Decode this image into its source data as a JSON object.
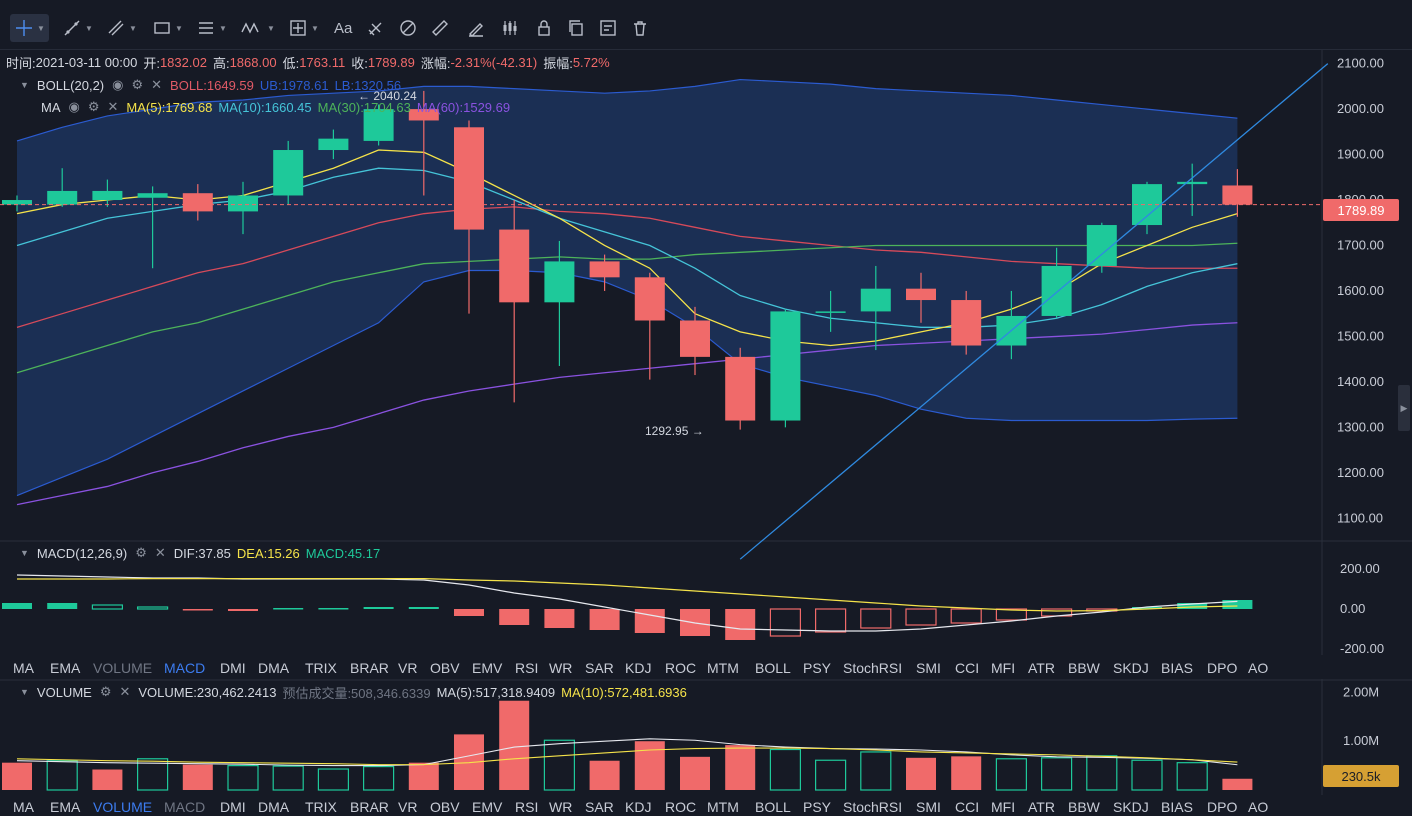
{
  "toolbar": {
    "tools": [
      {
        "name": "crosshair-tool",
        "caret": true,
        "active": true
      },
      {
        "name": "trend-line-tool",
        "caret": true
      },
      {
        "name": "multi-line-tool",
        "caret": true
      },
      {
        "name": "rectangle-tool",
        "caret": true
      },
      {
        "name": "fib-tool",
        "caret": true
      },
      {
        "name": "wave-tool",
        "caret": true
      },
      {
        "name": "measure-tool",
        "caret": true
      },
      {
        "name": "text-tool",
        "label": "Aa"
      },
      {
        "name": "brush-tool"
      },
      {
        "name": "eraser-tool"
      },
      {
        "name": "ruler-tool"
      },
      {
        "name": "pen-tool"
      },
      {
        "name": "candle-tool"
      },
      {
        "name": "lock-tool"
      },
      {
        "name": "copy-tool"
      },
      {
        "name": "settings-list-tool"
      },
      {
        "name": "trash-tool"
      }
    ]
  },
  "ohlc": {
    "time_label": "时间:",
    "time": "2021-03-11 00:00",
    "open_label": "开:",
    "open": "1832.02",
    "high_label": "高:",
    "high": "1868.00",
    "low_label": "低:",
    "low": "1763.11",
    "close_label": "收:",
    "close": "1789.89",
    "change_label": "涨幅:",
    "change": "-2.31%(-42.31)",
    "amp_label": "振幅:",
    "amp": "5.72%"
  },
  "boll_legend": {
    "name": "BOLL(20,2)",
    "boll": "BOLL:1649.59",
    "ub": "UB:1978.61",
    "lb": "LB:1320.56"
  },
  "ma_legend": {
    "name": "MA",
    "ma5": "MA(5):1769.68",
    "ma10": "MA(10):1660.45",
    "ma30": "MA(30):1704.63",
    "ma60": "MA(60):1529.69"
  },
  "macd_legend": {
    "name": "MACD(12,26,9)",
    "dif": "DIF:37.85",
    "dea": "DEA:15.26",
    "macd": "MACD:45.17"
  },
  "volume_legend": {
    "name": "VOLUME",
    "volume": "VOLUME:230,462.2413",
    "est": "预估成交量:508,346.6339",
    "ma5": "MA(5):517,318.9409",
    "ma10": "MA(10):572,481.6936"
  },
  "annotations": {
    "high_mark": "← 2040.24",
    "low_mark": "1292.95 →"
  },
  "price_tag": "1789.89",
  "vol_tag": "230.5k",
  "indicator_tabs": [
    "MA",
    "EMA",
    "VOLUME",
    "MACD",
    "DMI",
    "DMA",
    "TRIX",
    "BRAR",
    "VR",
    "OBV",
    "EMV",
    "RSI",
    "WR",
    "SAR",
    "KDJ",
    "ROC",
    "MTM",
    "BOLL",
    "PSY",
    "StochRSI",
    "SMI",
    "CCI",
    "MFI",
    "ATR",
    "BBW",
    "SKDJ",
    "BIAS",
    "DPO",
    "AO"
  ],
  "tabs_row1_active": "MACD",
  "tabs_row1_dim": [
    "VOLUME"
  ],
  "tabs_row2_active": "VOLUME",
  "tabs_row2_dim": [
    "MACD"
  ],
  "colors": {
    "up": "#1ec99a",
    "down": "#f06a6a",
    "boll_band": "#1e3a6a",
    "boll_line": "#2b5bd0",
    "ma5": "#f5e34a",
    "ma10": "#45c4d8",
    "ma30": "#4db35a",
    "ma60": "#8a52e0",
    "boll_mid": "#d64a5a",
    "trend": "#2f8ae0",
    "bg": "#161a25"
  },
  "chart_data": [
    {
      "type": "candlestick",
      "panel": "price",
      "y_ticks": [
        "2100.00",
        "2000.00",
        "1900.00",
        "1800.00",
        "1700.00",
        "1600.00",
        "1500.00",
        "1400.00",
        "1300.00",
        "1200.00",
        "1100.00"
      ],
      "ylim": [
        1050,
        2130
      ],
      "candles": [
        {
          "o": 1790,
          "h": 1810,
          "l": 1775,
          "c": 1800
        },
        {
          "o": 1790,
          "h": 1870,
          "l": 1785,
          "c": 1820
        },
        {
          "o": 1800,
          "h": 1845,
          "l": 1785,
          "c": 1820
        },
        {
          "o": 1805,
          "h": 1830,
          "l": 1650,
          "c": 1815
        },
        {
          "o": 1815,
          "h": 1835,
          "l": 1755,
          "c": 1775
        },
        {
          "o": 1775,
          "h": 1840,
          "l": 1725,
          "c": 1810
        },
        {
          "o": 1810,
          "h": 1930,
          "l": 1790,
          "c": 1910
        },
        {
          "o": 1910,
          "h": 1955,
          "l": 1890,
          "c": 1935
        },
        {
          "o": 1930,
          "h": 2010,
          "l": 1920,
          "c": 2000
        },
        {
          "o": 2000,
          "h": 2040,
          "l": 1810,
          "c": 1975
        },
        {
          "o": 1960,
          "h": 1975,
          "l": 1550,
          "c": 1735
        },
        {
          "o": 1735,
          "h": 1800,
          "l": 1355,
          "c": 1575
        },
        {
          "o": 1575,
          "h": 1710,
          "l": 1435,
          "c": 1665
        },
        {
          "o": 1665,
          "h": 1680,
          "l": 1600,
          "c": 1630
        },
        {
          "o": 1630,
          "h": 1640,
          "l": 1405,
          "c": 1535
        },
        {
          "o": 1535,
          "h": 1565,
          "l": 1415,
          "c": 1455
        },
        {
          "o": 1455,
          "h": 1475,
          "l": 1295,
          "c": 1315
        },
        {
          "o": 1315,
          "h": 1560,
          "l": 1300,
          "c": 1555
        },
        {
          "o": 1555,
          "h": 1600,
          "l": 1510,
          "c": 1555
        },
        {
          "o": 1555,
          "h": 1655,
          "l": 1470,
          "c": 1605
        },
        {
          "o": 1605,
          "h": 1640,
          "l": 1530,
          "c": 1580
        },
        {
          "o": 1580,
          "h": 1600,
          "l": 1460,
          "c": 1480
        },
        {
          "o": 1480,
          "h": 1600,
          "l": 1450,
          "c": 1545
        },
        {
          "o": 1545,
          "h": 1695,
          "l": 1540,
          "c": 1655
        },
        {
          "o": 1655,
          "h": 1750,
          "l": 1640,
          "c": 1745
        },
        {
          "o": 1745,
          "h": 1840,
          "l": 1725,
          "c": 1835
        },
        {
          "o": 1835,
          "h": 1880,
          "l": 1765,
          "c": 1840
        },
        {
          "o": 1832.02,
          "h": 1868,
          "l": 1763.11,
          "c": 1789.89
        }
      ],
      "ub": [
        1930,
        1960,
        1985,
        2000,
        2015,
        2020,
        2030,
        2035,
        2040,
        2050,
        2050,
        2045,
        2040,
        2035,
        2040,
        2050,
        2065,
        2060,
        2055,
        2045,
        2040,
        2035,
        2030,
        2020,
        2010,
        2000,
        1990,
        1980
      ],
      "lb": [
        1150,
        1190,
        1230,
        1280,
        1330,
        1380,
        1430,
        1480,
        1530,
        1620,
        1645,
        1645,
        1640,
        1620,
        1580,
        1520,
        1440,
        1410,
        1390,
        1370,
        1340,
        1320,
        1315,
        1315,
        1315,
        1315,
        1318,
        1320
      ],
      "mid": [
        1520,
        1550,
        1580,
        1610,
        1640,
        1660,
        1690,
        1720,
        1750,
        1770,
        1780,
        1785,
        1775,
        1770,
        1760,
        1740,
        1720,
        1710,
        1700,
        1690,
        1685,
        1675,
        1665,
        1660,
        1655,
        1650,
        1650,
        1650
      ],
      "ma5": [
        1770,
        1790,
        1800,
        1810,
        1800,
        1810,
        1840,
        1870,
        1910,
        1905,
        1860,
        1810,
        1760,
        1700,
        1650,
        1550,
        1510,
        1490,
        1480,
        1490,
        1510,
        1530,
        1560,
        1600,
        1660,
        1700,
        1740,
        1770
      ],
      "ma10": [
        1700,
        1730,
        1760,
        1775,
        1790,
        1800,
        1820,
        1850,
        1870,
        1865,
        1840,
        1800,
        1760,
        1730,
        1700,
        1650,
        1590,
        1560,
        1540,
        1530,
        1520,
        1520,
        1525,
        1540,
        1570,
        1610,
        1640,
        1660
      ],
      "ma30": [
        1420,
        1450,
        1480,
        1510,
        1530,
        1560,
        1590,
        1620,
        1640,
        1660,
        1665,
        1670,
        1675,
        1670,
        1670,
        1680,
        1685,
        1690,
        1695,
        1700,
        1700,
        1700,
        1700,
        1700,
        1700,
        1700,
        1700,
        1705
      ],
      "ma60": [
        1130,
        1150,
        1170,
        1200,
        1225,
        1255,
        1280,
        1300,
        1330,
        1360,
        1380,
        1395,
        1410,
        1420,
        1430,
        1440,
        1450,
        1460,
        1470,
        1480,
        1485,
        1490,
        1495,
        1500,
        1505,
        1515,
        1525,
        1530
      ],
      "trend_line": {
        "from": {
          "index": 16,
          "value": 1010
        },
        "to": {
          "index": 29,
          "value": 2100
        }
      },
      "current_price": 1789.89
    },
    {
      "type": "bar",
      "panel": "macd",
      "y_ticks": [
        "200.00",
        "0.00",
        "-200.00"
      ],
      "ylim": [
        -220,
        220
      ],
      "hist": [
        30,
        30,
        20,
        10,
        -5,
        -10,
        5,
        5,
        10,
        10,
        -35,
        -80,
        -95,
        -105,
        -120,
        -135,
        -155,
        -135,
        -115,
        -95,
        -80,
        -70,
        -55,
        -35,
        -10,
        10,
        30,
        45
      ],
      "dif": [
        170,
        165,
        160,
        155,
        155,
        150,
        150,
        150,
        150,
        145,
        120,
        80,
        50,
        10,
        -30,
        -70,
        -100,
        -105,
        -110,
        -110,
        -100,
        -80,
        -60,
        -35,
        -15,
        10,
        25,
        38
      ],
      "dea": [
        150,
        150,
        150,
        152,
        152,
        152,
        152,
        152,
        152,
        152,
        145,
        140,
        130,
        120,
        105,
        90,
        75,
        60,
        45,
        30,
        15,
        5,
        -5,
        -10,
        -8,
        0,
        10,
        15
      ]
    },
    {
      "type": "bar",
      "panel": "volume",
      "y_ticks": [
        "2.00M",
        "1.00M"
      ],
      "ylim": [
        0,
        2050000
      ],
      "volumes": [
        {
          "v": 560000,
          "up": false
        },
        {
          "v": 600000,
          "up": true
        },
        {
          "v": 420000,
          "up": false
        },
        {
          "v": 640000,
          "up": true
        },
        {
          "v": 520000,
          "up": false
        },
        {
          "v": 500000,
          "up": true
        },
        {
          "v": 490000,
          "up": true
        },
        {
          "v": 430000,
          "up": true
        },
        {
          "v": 480000,
          "up": true
        },
        {
          "v": 560000,
          "up": false
        },
        {
          "v": 1140000,
          "up": false
        },
        {
          "v": 1830000,
          "up": false
        },
        {
          "v": 1020000,
          "up": true
        },
        {
          "v": 600000,
          "up": false
        },
        {
          "v": 1000000,
          "up": false
        },
        {
          "v": 680000,
          "up": false
        },
        {
          "v": 920000,
          "up": false
        },
        {
          "v": 830000,
          "up": true
        },
        {
          "v": 610000,
          "up": true
        },
        {
          "v": 780000,
          "up": true
        },
        {
          "v": 660000,
          "up": false
        },
        {
          "v": 690000,
          "up": false
        },
        {
          "v": 640000,
          "up": true
        },
        {
          "v": 660000,
          "up": true
        },
        {
          "v": 700000,
          "up": true
        },
        {
          "v": 610000,
          "up": true
        },
        {
          "v": 560000,
          "up": true
        },
        {
          "v": 230462,
          "up": false
        }
      ],
      "vol_ma5": [
        600000,
        580000,
        560000,
        550000,
        540000,
        530000,
        510000,
        500000,
        500000,
        520000,
        700000,
        880000,
        950000,
        1000000,
        1050000,
        1020000,
        930000,
        880000,
        850000,
        840000,
        820000,
        780000,
        720000,
        680000,
        670000,
        650000,
        620000,
        517319
      ],
      "vol_ma10": [
        640000,
        620000,
        600000,
        590000,
        570000,
        560000,
        550000,
        540000,
        520000,
        520000,
        560000,
        640000,
        700000,
        760000,
        820000,
        850000,
        860000,
        860000,
        850000,
        820000,
        780000,
        760000,
        740000,
        720000,
        690000,
        660000,
        620000,
        572482
      ]
    }
  ]
}
